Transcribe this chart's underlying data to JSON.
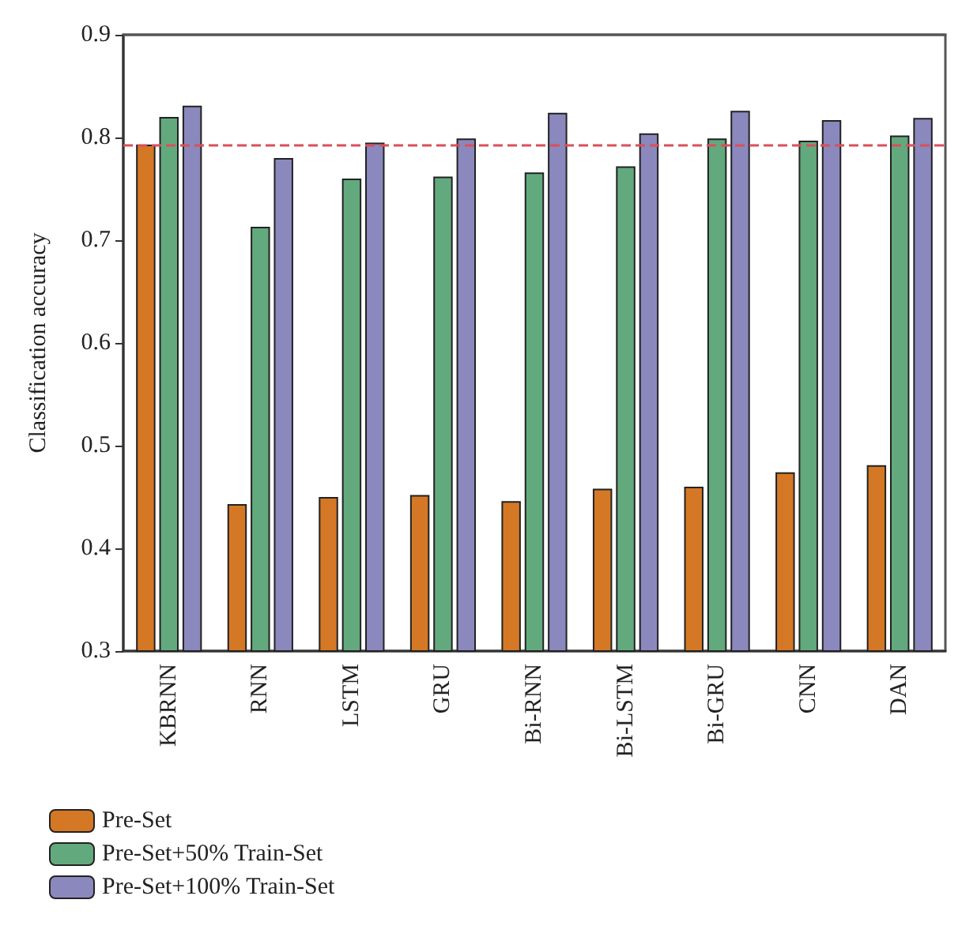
{
  "chart_data": {
    "type": "bar",
    "ylabel": "Classification accuracy",
    "categories": [
      "KBRNN",
      "RNN",
      "LSTM",
      "GRU",
      "Bi-RNN",
      "Bi-LSTM",
      "Bi-GRU",
      "CNN",
      "DAN"
    ],
    "series": [
      {
        "name": "Pre-Set",
        "color": "#d47826",
        "values": [
          0.793,
          0.443,
          0.45,
          0.452,
          0.446,
          0.458,
          0.46,
          0.474,
          0.481
        ]
      },
      {
        "name": "Pre-Set+50% Train-Set",
        "color": "#63a97e",
        "values": [
          0.82,
          0.713,
          0.76,
          0.762,
          0.766,
          0.772,
          0.799,
          0.797,
          0.802
        ]
      },
      {
        "name": "Pre-Set+100% Train-Set",
        "color": "#8a88bd",
        "values": [
          0.831,
          0.78,
          0.795,
          0.799,
          0.824,
          0.804,
          0.826,
          0.817,
          0.819
        ]
      }
    ],
    "ylim": [
      0.3,
      0.9
    ],
    "yticks": [
      0.3,
      0.4,
      0.5,
      0.6,
      0.7,
      0.8,
      0.9
    ],
    "ref_lines": [
      {
        "axis": "y",
        "value": 0.793,
        "color": "#d9505a",
        "line_style": "dashed"
      }
    ],
    "grid": false,
    "legend": "bottom left"
  }
}
